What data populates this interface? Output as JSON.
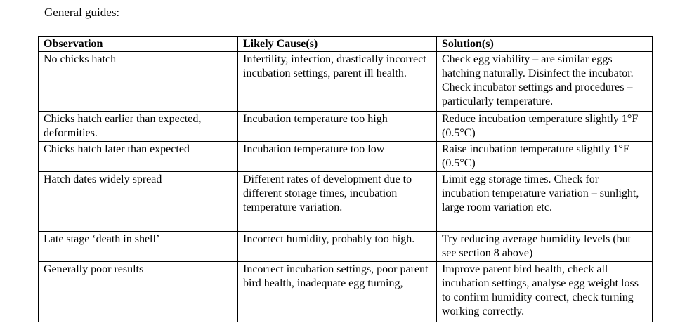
{
  "heading": "General guides:",
  "table": {
    "headers": [
      "Observation",
      "Likely Cause(s)",
      "Solution(s)"
    ],
    "rows": [
      {
        "observation": "No chicks hatch",
        "cause": "Infertility, infection, drastically incorrect incubation settings, parent ill health.",
        "solution": "Check egg viability – are similar eggs hatching naturally. Disinfect the incubator. Check incubator settings and procedures – particularly temperature."
      },
      {
        "observation": "Chicks hatch earlier than expected, deformities.",
        "cause": "Incubation temperature too high",
        "solution": "Reduce incubation temperature slightly 1°F (0.5°C)"
      },
      {
        "observation": "Chicks hatch later than expected",
        "cause": "Incubation temperature too low",
        "solution": "Raise incubation temperature slightly 1°F (0.5°C)"
      },
      {
        "observation": "Hatch dates widely spread",
        "cause": "Different rates of development due to different storage times, incubation temperature variation.",
        "solution": "Limit egg storage times. Check for incubation temperature variation – sunlight, large room variation etc."
      },
      {
        "observation": "Late stage ‘death in shell’",
        "cause": "Incorrect humidity, probably too high.",
        "solution": "Try reducing average humidity levels (but see section 8 above)"
      },
      {
        "observation": "Generally poor results",
        "cause": "Incorrect incubation settings, poor parent bird health, inadequate egg turning,",
        "solution": "Improve parent bird health, check all incubation settings, analyse egg weight loss to confirm humidity correct, check turning working correctly."
      }
    ]
  }
}
